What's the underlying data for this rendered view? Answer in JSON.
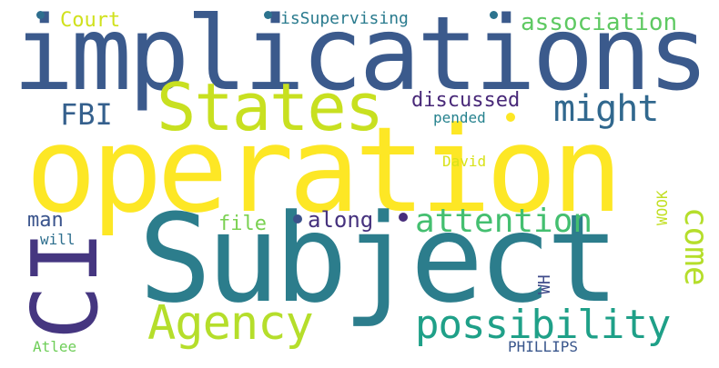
{
  "words": [
    {
      "text": "implications",
      "color": "#3b5a8c"
    },
    {
      "text": "operation",
      "color": "#fde725"
    },
    {
      "text": "Subject",
      "color": "#2c7d8c"
    },
    {
      "text": "CI",
      "color": "#453680"
    },
    {
      "text": "States",
      "color": "#c8e020"
    },
    {
      "text": "Agency",
      "color": "#b5de2b"
    },
    {
      "text": "possibility",
      "color": "#1fa088"
    },
    {
      "text": "attention",
      "color": "#44bf70"
    },
    {
      "text": "might",
      "color": "#31688e"
    },
    {
      "text": "come",
      "color": "#b5de2b"
    },
    {
      "text": "association",
      "color": "#5ec962"
    },
    {
      "text": "Court",
      "color": "#d0e11c"
    },
    {
      "text": "isSupervising",
      "color": "#2a7b8e"
    },
    {
      "text": "FBI",
      "color": "#35608d"
    },
    {
      "text": "discussed",
      "color": "#482878"
    },
    {
      "text": "pended",
      "color": "#26828e"
    },
    {
      "text": "David",
      "color": "#d8e219"
    },
    {
      "text": "WOOK",
      "color": "#c2df23"
    },
    {
      "text": "man",
      "color": "#3a548c"
    },
    {
      "text": "file",
      "color": "#7ad151"
    },
    {
      "text": "along",
      "color": "#46327e"
    },
    {
      "text": "will",
      "color": "#2e6f8e"
    },
    {
      "text": "WH",
      "color": "#3e4a89"
    },
    {
      "text": "Atlee",
      "color": "#6ece58"
    },
    {
      "text": "PHILLIPS",
      "color": "#39568c"
    }
  ],
  "dots": [
    {
      "color": "#2e6e8e"
    },
    {
      "color": "#2c738e"
    },
    {
      "color": "#fde725"
    },
    {
      "color": "#3b528b"
    },
    {
      "color": "#472d7b"
    },
    {
      "color": "#6ece58"
    }
  ]
}
